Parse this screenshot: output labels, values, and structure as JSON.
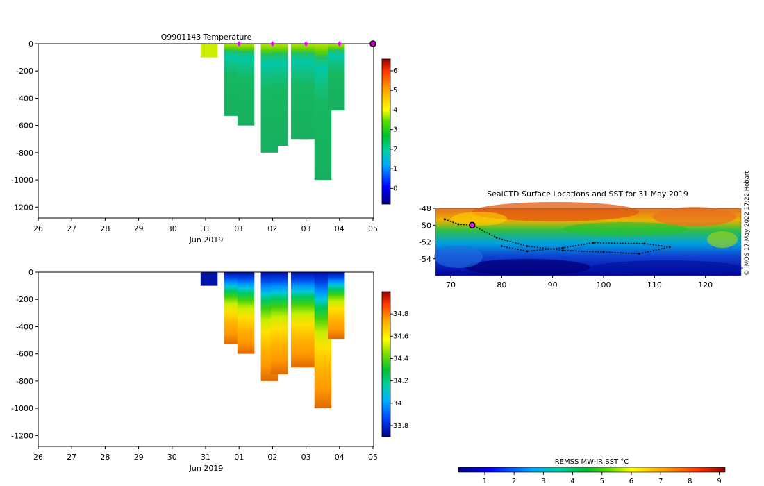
{
  "figure": {
    "credit": "© IMOS 17-May-2022 17:22 Hobart"
  },
  "chart_data": [
    {
      "type": "heatmap",
      "title": "Q9901143  Temperature",
      "variable": "temperature",
      "x_ticks": [
        "26",
        "27",
        "28",
        "29",
        "30",
        "31",
        "01",
        "02",
        "03",
        "04",
        "05"
      ],
      "x_sublabel": "Jun 2019",
      "y_ticks": [
        "0",
        "-200",
        "-400",
        "-600",
        "-800",
        "-1000",
        "-1200"
      ],
      "ylim": [
        -1280,
        0
      ],
      "colorbar": {
        "ticks": [
          "0",
          "1",
          "2",
          "3",
          "4",
          "5",
          "6"
        ],
        "range": [
          -0.8,
          6.6
        ]
      },
      "profile_markers": [
        "01",
        "02",
        "03",
        "04",
        "05"
      ],
      "profiles": [
        {
          "day": 31.1,
          "max_depth": 100
        },
        {
          "day": 31.8,
          "max_depth": 530
        },
        {
          "day": 32.2,
          "max_depth": 600
        },
        {
          "day": 32.9,
          "max_depth": 800
        },
        {
          "day": 33.2,
          "max_depth": 750
        },
        {
          "day": 33.8,
          "max_depth": 700
        },
        {
          "day": 34.1,
          "max_depth": 700
        },
        {
          "day": 34.5,
          "max_depth": 1000
        },
        {
          "day": 34.9,
          "max_depth": 490
        }
      ]
    },
    {
      "type": "heatmap",
      "title": "",
      "variable": "salinity",
      "x_ticks": [
        "26",
        "27",
        "28",
        "29",
        "30",
        "31",
        "01",
        "02",
        "03",
        "04",
        "05"
      ],
      "x_sublabel": "Jun 2019",
      "y_ticks": [
        "0",
        "-200",
        "-400",
        "-600",
        "-800",
        "-1000",
        "-1200"
      ],
      "ylim": [
        -1280,
        0
      ],
      "colorbar": {
        "ticks": [
          "33.8",
          "34",
          "34.2",
          "34.4",
          "34.6",
          "34.8"
        ],
        "range": [
          33.7,
          35.0
        ]
      }
    },
    {
      "type": "heatmap",
      "title": "SealCTD Surface Locations and SST for 31 May 2019",
      "x_ticks": [
        "70",
        "80",
        "90",
        "100",
        "110",
        "120"
      ],
      "y_ticks": [
        "-48",
        "-50",
        "-52",
        "-54"
      ],
      "xlim": [
        67,
        127
      ],
      "ylim": [
        -56,
        -48
      ],
      "colorbar": {
        "label": "REMSS MW-IR SST °C",
        "ticks": [
          "1",
          "2",
          "3",
          "4",
          "5",
          "6",
          "7",
          "8",
          "9"
        ],
        "range": [
          0.1,
          9.2
        ]
      },
      "track_points": [
        {
          "lon": 68.8,
          "lat": -49.3
        },
        {
          "lon": 71.5,
          "lat": -49.9
        },
        {
          "lon": 74.2,
          "lat": -50.0
        },
        {
          "lon": 79,
          "lat": -51.5
        },
        {
          "lon": 85,
          "lat": -52.5
        },
        {
          "lon": 92,
          "lat": -53.0
        },
        {
          "lon": 100,
          "lat": -53.2
        },
        {
          "lon": 107,
          "lat": -53.4
        },
        {
          "lon": 113,
          "lat": -52.6
        },
        {
          "lon": 108,
          "lat": -52.2
        },
        {
          "lon": 98,
          "lat": -52.1
        },
        {
          "lon": 92,
          "lat": -52.7
        },
        {
          "lon": 85,
          "lat": -53.1
        },
        {
          "lon": 80,
          "lat": -52.5
        }
      ],
      "current_location": {
        "lon": 74.2,
        "lat": -50.0
      }
    }
  ]
}
